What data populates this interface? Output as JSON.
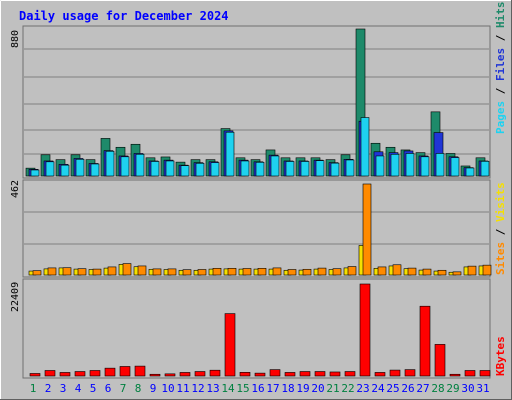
{
  "chart_data": {
    "type": "bar",
    "title": "Daily usage for December 2024",
    "categories": [
      "1",
      "2",
      "3",
      "4",
      "5",
      "6",
      "7",
      "8",
      "9",
      "10",
      "11",
      "12",
      "13",
      "14",
      "15",
      "16",
      "17",
      "18",
      "19",
      "20",
      "21",
      "22",
      "23",
      "24",
      "25",
      "26",
      "27",
      "28",
      "29",
      "30",
      "31"
    ],
    "weekend_days": [
      "1",
      "7",
      "8",
      "14",
      "15",
      "21",
      "22",
      "28",
      "29"
    ],
    "panels": [
      {
        "name": "hits-files-pages",
        "ymax_label": "880",
        "ylim": [
          0,
          880
        ],
        "legend": [
          "Pages",
          "Files",
          "Hits"
        ],
        "series": [
          {
            "name": "Hits",
            "color": "#1e8a6a",
            "values": [
              47,
              127,
              98,
              127,
              98,
              225,
              172,
              190,
              109,
              114,
              83,
              98,
              98,
              284,
              109,
              98,
              156,
              109,
              109,
              109,
              98,
              127,
              880,
              196,
              172,
              156,
              140,
              384,
              135,
              60,
              109
            ]
          },
          {
            "name": "Files",
            "color": "#1f35d6",
            "values": [
              40,
              90,
              70,
              105,
              75,
              152,
              120,
              135,
              90,
              95,
              65,
              80,
              85,
              270,
              95,
              85,
              125,
              90,
              90,
              95,
              80,
              100,
              328,
              145,
              140,
              150,
              120,
              260,
              115,
              50,
              90
            ]
          },
          {
            "name": "Pages",
            "color": "#1ed2f0",
            "values": [
              36,
              85,
              65,
              100,
              72,
              148,
              115,
              130,
              87,
              90,
              62,
              76,
              80,
              262,
              90,
              82,
              120,
              87,
              87,
              92,
              77,
              96,
              350,
              120,
              130,
              135,
              115,
              135,
              110,
              48,
              88
            ]
          }
        ]
      },
      {
        "name": "visits-sites",
        "ymax_label": "462",
        "ylim": [
          0,
          462
        ],
        "legend": [
          "Sites",
          "Visits"
        ],
        "series": [
          {
            "name": "Visits",
            "color": "#f5e000",
            "values": [
              20,
              31,
              36,
              30,
              28,
              35,
              54,
              42,
              29,
              28,
              24,
              24,
              30,
              31,
              30,
              30,
              30,
              24,
              25,
              30,
              28,
              36,
              150,
              34,
              46,
              32,
              25,
              20,
              14,
              41,
              46
            ]
          },
          {
            "name": "Sites",
            "color": "#ff8a00",
            "values": [
              22,
              36,
              37,
              32,
              30,
              41,
              58,
              46,
              31,
              31,
              27,
              28,
              34,
              34,
              33,
              34,
              36,
              28,
              29,
              35,
              32,
              43,
              462,
              41,
              52,
              35,
              30,
              24,
              16,
              45,
              50
            ]
          }
        ]
      },
      {
        "name": "kbytes",
        "ymax_label": "22409",
        "ylim": [
          0,
          22409
        ],
        "legend": [
          "KBytes"
        ],
        "series": [
          {
            "name": "KBytes",
            "color": "#ff0000",
            "values": [
              616,
              1343,
              869,
              1093,
              1343,
              1912,
              2322,
              2411,
              427,
              524,
              869,
              1093,
              1414,
              15200,
              900,
              700,
              1560,
              869,
              1093,
              1093,
              981,
              1093,
              22409,
              869,
              1441,
              1560,
              17000,
              7700,
              427,
              1343,
              1343
            ]
          }
        ]
      }
    ],
    "background": "#c0c0c0",
    "title_color": "#0000ff",
    "weekday_label_color": "#0000ff",
    "weekend_label_color": "#008040"
  }
}
